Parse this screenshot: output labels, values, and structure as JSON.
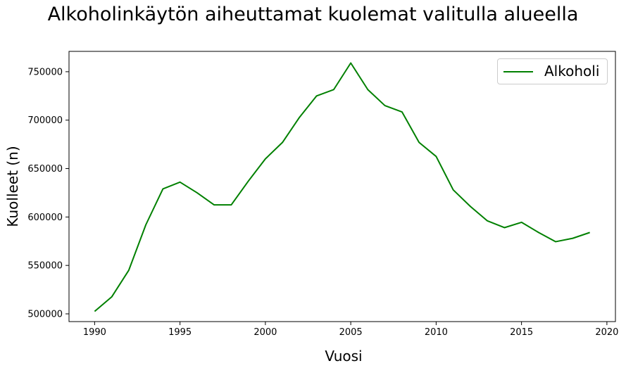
{
  "chart_data": {
    "type": "line",
    "title": "Alkoholinkäytön aiheuttamat kuolemat valitulla alueella",
    "xlabel": "Vuosi",
    "ylabel": "Kuolleet (n)",
    "x": [
      1990,
      1991,
      1992,
      1993,
      1994,
      1995,
      1996,
      1997,
      1998,
      1999,
      2000,
      2001,
      2002,
      2003,
      2004,
      2005,
      2006,
      2007,
      2008,
      2009,
      2010,
      2011,
      2012,
      2013,
      2014,
      2015,
      2016,
      2017,
      2018,
      2019
    ],
    "series": [
      {
        "name": "Alkoholi",
        "color": "#008000",
        "values": [
          502500,
          517500,
          545000,
          592000,
          629000,
          636000,
          625000,
          612500,
          612500,
          637000,
          660000,
          677000,
          703000,
          725000,
          731500,
          759000,
          731500,
          715000,
          708500,
          677000,
          662500,
          628000,
          611000,
          596000,
          589000,
          594500,
          584000,
          574500,
          578000,
          584000
        ]
      }
    ],
    "xlim": [
      1988.5,
      2020.5
    ],
    "ylim": [
      492000,
      771000
    ],
    "xticks": [
      1990,
      1995,
      2000,
      2005,
      2010,
      2015,
      2020
    ],
    "yticks": [
      500000,
      550000,
      600000,
      650000,
      700000,
      750000
    ],
    "grid": false,
    "legend_position": "top-right"
  }
}
